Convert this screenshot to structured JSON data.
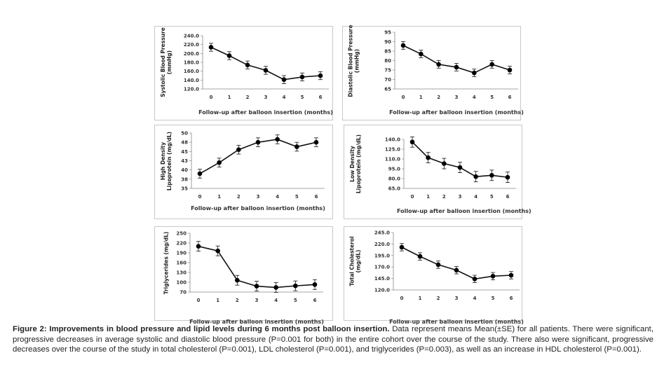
{
  "chart_data": [
    {
      "type": "line",
      "ylabel": "Systolic Blood Pressure (mmHg)",
      "xlabel": "Follow-up after balloon insertion (months)",
      "x": [
        0,
        1,
        2,
        3,
        4,
        5,
        6
      ],
      "xticks": [
        "0",
        "1",
        "2",
        "3",
        "4",
        "5",
        "6"
      ],
      "values": [
        214,
        195,
        174,
        162,
        141,
        147,
        150
      ],
      "errors": [
        9,
        9,
        9,
        9,
        9,
        9,
        9
      ],
      "ylim": [
        120,
        240
      ],
      "yticks": [
        "240.0",
        "220.0",
        "200.0",
        "180.0",
        "160.0",
        "140.0",
        "120.0"
      ],
      "ytick_values": [
        240,
        220,
        200,
        180,
        160,
        140,
        120
      ],
      "grid": false
    },
    {
      "type": "line",
      "ylabel": "Diastolic Blood Pressure (mmHg)",
      "xlabel": "Follow-up after balloon insertion (months)",
      "x": [
        0,
        1,
        2,
        3,
        4,
        5,
        6
      ],
      "xticks": [
        "0",
        "1",
        "2",
        "3",
        "4",
        "5",
        "6"
      ],
      "values": [
        88,
        83.5,
        78,
        76.5,
        73.5,
        78,
        75
      ],
      "errors": [
        2,
        2,
        2,
        2,
        2,
        2,
        2
      ],
      "ylim": [
        65,
        95
      ],
      "yticks": [
        "95",
        "90",
        "85",
        "80",
        "75",
        "70",
        "65"
      ],
      "ytick_values": [
        95,
        90,
        85,
        80,
        75,
        70,
        65
      ],
      "grid": false
    },
    {
      "type": "line",
      "ylabel": "High Density Lipoprotein (mg/dL)",
      "xlabel": "Follow-up after balloon insertion (months)",
      "x": [
        0,
        1,
        2,
        3,
        4,
        5,
        6
      ],
      "xticks": [
        "0",
        "1",
        "2",
        "3",
        "4",
        "5",
        "6"
      ],
      "values": [
        39,
        42,
        45.5,
        47.5,
        48.3,
        46.3,
        47.5
      ],
      "errors": [
        1.2,
        1.2,
        1.2,
        1.2,
        1.2,
        1.2,
        1.2
      ],
      "ylim": [
        35,
        50
      ],
      "yticks": [
        "50",
        "48",
        "45",
        "43",
        "40",
        "38",
        "35"
      ],
      "ytick_values": [
        50,
        47.5,
        45,
        42.5,
        40,
        37.5,
        35
      ],
      "grid": false
    },
    {
      "type": "line",
      "ylabel": "Low Density Lipoprotein (mg/dL)",
      "xlabel": "Follow-up after balloon insertion (months)",
      "x": [
        0,
        1,
        2,
        3,
        4,
        5,
        6
      ],
      "xticks": [
        "0",
        "1",
        "2",
        "3",
        "4",
        "5",
        "6"
      ],
      "values": [
        136,
        112,
        103,
        97,
        83,
        85,
        82
      ],
      "errors": [
        8,
        8,
        8,
        8,
        8,
        8,
        8
      ],
      "ylim": [
        65,
        140
      ],
      "yticks": [
        "140.0",
        "125.0",
        "110.0",
        "95.0",
        "80.0",
        "65.0"
      ],
      "ytick_values": [
        140,
        125,
        110,
        95,
        80,
        65
      ],
      "grid": false
    },
    {
      "type": "line",
      "ylabel": "Triglycerides (mg/dL)",
      "xlabel": "Follow-up after balloon insertion (months)",
      "x": [
        0,
        1,
        2,
        3,
        4,
        5,
        6
      ],
      "xticks": [
        "0",
        "1",
        "2",
        "3",
        "4",
        "5",
        "6"
      ],
      "values": [
        210,
        196,
        106,
        88,
        84,
        89,
        93
      ],
      "errors": [
        15,
        15,
        15,
        15,
        15,
        15,
        15
      ],
      "ylim": [
        70,
        250
      ],
      "yticks": [
        "250",
        "220",
        "190",
        "160",
        "130",
        "100",
        "70"
      ],
      "ytick_values": [
        250,
        220,
        190,
        160,
        130,
        100,
        70
      ],
      "grid": false
    },
    {
      "type": "line",
      "ylabel": "Total Cholesterol (mg/dL)",
      "xlabel": "Follow-up after balloon insertion (months)",
      "x": [
        0,
        1,
        2,
        3,
        4,
        5,
        6
      ],
      "xticks": [
        "0",
        "1",
        "2",
        "3",
        "4",
        "5",
        "6"
      ],
      "values": [
        213,
        193,
        175,
        163,
        144,
        150,
        152
      ],
      "errors": [
        8,
        8,
        8,
        8,
        8,
        8,
        8
      ],
      "ylim": [
        120,
        245
      ],
      "yticks": [
        "245.0",
        "220.0",
        "195.0",
        "170.0",
        "145.0",
        "120.0"
      ],
      "ytick_values": [
        245,
        220,
        195,
        170,
        145,
        120
      ],
      "grid": false
    }
  ],
  "caption": {
    "bold": "Figure 2: Improvements in blood pressure and lipid levels during 6 months post balloon insertion.",
    "text": " Data represent means Mean(±SE) for all patients. There were significant, progressive decreases in average systolic and diastolic blood pressure (P=0.001 for both) in the entire cohort over the course of the study. There also were significant, progressive decreases over the course of the study in total cholesterol (P=0.001), LDL cholesterol (P=0.001), and triglycerides (P=0.003), as well as an increase in HDL cholesterol (P=0.001)."
  },
  "colors": {
    "line": "#111111",
    "marker": "#000000",
    "border": "#c8c8c8"
  }
}
